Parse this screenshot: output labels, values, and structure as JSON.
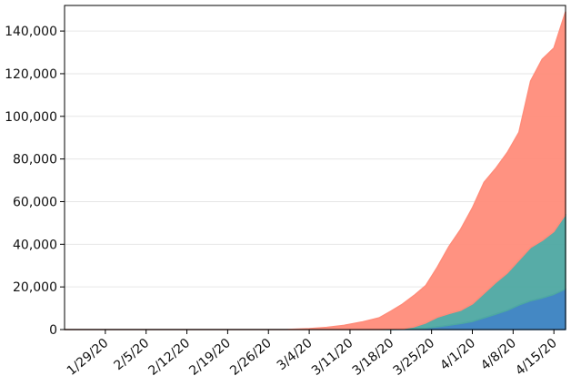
{
  "chart_data": {
    "type": "area",
    "stacked": true,
    "title": "",
    "xlabel": "",
    "ylabel": "",
    "grid": "horizontal",
    "legend": "none",
    "x_start": "1/22/20",
    "x_end": "4/17/20",
    "x_ticks": [
      "1/29/20",
      "2/5/20",
      "2/12/20",
      "2/19/20",
      "2/26/20",
      "3/4/20",
      "3/11/20",
      "3/18/20",
      "3/25/20",
      "4/1/20",
      "4/8/20",
      "4/15/20"
    ],
    "y_ticks": [
      "0",
      "20,000",
      "40,000",
      "60,000",
      "80,000",
      "100,000",
      "120,000",
      "140,000"
    ],
    "ylim": [
      0,
      152000
    ],
    "x": [
      "1/22/20",
      "2/5/20",
      "2/19/20",
      "2/29/20",
      "3/4/20",
      "3/7/20",
      "3/10/20",
      "3/13/20",
      "3/16/20",
      "3/18/20",
      "3/20/20",
      "3/22/20",
      "3/24/20",
      "3/26/20",
      "3/28/20",
      "3/30/20",
      "4/1/20",
      "4/3/20",
      "4/5/20",
      "4/7/20",
      "4/9/20",
      "4/11/20",
      "4/13/20",
      "4/15/20",
      "4/17/20"
    ],
    "series": [
      {
        "color": "#3a82c1",
        "values": [
          0,
          0,
          0,
          0,
          0,
          0,
          0,
          0,
          0,
          0,
          100,
          400,
          700,
          1300,
          2000,
          2800,
          3800,
          5500,
          7200,
          9000,
          11500,
          13500,
          14800,
          16500,
          19000
        ]
      },
      {
        "color": "#4ea8a2",
        "values": [
          0,
          0,
          0,
          0,
          0,
          0,
          0,
          0,
          0,
          100,
          300,
          900,
          2400,
          4500,
          5500,
          6200,
          8200,
          11500,
          14800,
          17500,
          21000,
          25000,
          27000,
          29500,
          35000
        ]
      },
      {
        "color": "#ff8c7a",
        "values": [
          0,
          0,
          0,
          0,
          400,
          1000,
          2000,
          3500,
          5500,
          8500,
          11500,
          14700,
          17500,
          23500,
          31500,
          38000,
          45000,
          52000,
          53500,
          56500,
          60000,
          78000,
          85000,
          86000,
          95000
        ]
      }
    ]
  }
}
